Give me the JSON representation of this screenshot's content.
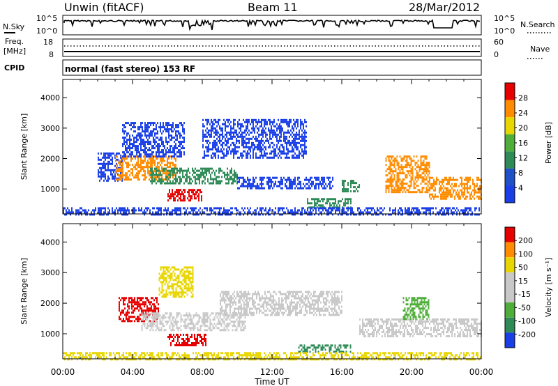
{
  "header": {
    "station": "Unwin (fitACF)",
    "beam": "Beam 11",
    "date": "28/Mar/2012"
  },
  "status_panel": {
    "nsky_label": "N.Sky",
    "nsky_ticks": [
      "10^5",
      "10^0"
    ],
    "nsearch_label": "N.Search",
    "nsearch_ticks": [
      "10^5",
      "10^0"
    ],
    "freq_label": "Freq.",
    "freq_unit": "[MHz]",
    "freq_ticks": [
      "18",
      "8"
    ],
    "nave_label": "Nave",
    "nave_ticks": [
      "60",
      "0"
    ],
    "cpid_label": "CPID",
    "cpid_text": "normal (fast stereo) 153 RF"
  },
  "colors": {
    "blue": "#1a3fe6",
    "green_dark": "#2e8b57",
    "green_light": "#4fae3a",
    "yellow": "#e8d600",
    "orange": "#ff8c00",
    "red": "#e60000",
    "gray": "#c8c8c8"
  },
  "chart_data": [
    {
      "type": "heatmap",
      "name": "power",
      "ylabel": "Slant Range [km]",
      "xlabel": "Time UT",
      "x_ticks": [
        "00:00",
        "04:00",
        "08:00",
        "12:00",
        "16:00",
        "20:00",
        "00:00"
      ],
      "x_range_hours": [
        0,
        24
      ],
      "y_ticks": [
        "1000",
        "2000",
        "3000",
        "4000"
      ],
      "ylim": [
        180,
        4600
      ],
      "colorbar": {
        "label": "Power [dB]",
        "ticks": [
          "28",
          "24",
          "20",
          "16",
          "12",
          "8",
          "4"
        ],
        "range": [
          0,
          30
        ],
        "colors": [
          "#1a3fe6",
          "#2050c8",
          "#2e8b57",
          "#4fae3a",
          "#e8d600",
          "#ff8c00",
          "#e60000"
        ]
      },
      "echo_regions": [
        {
          "t0": 2.0,
          "t1": 3.4,
          "r0": 1300,
          "r1": 2200,
          "level": "blue"
        },
        {
          "t0": 3.0,
          "t1": 6.5,
          "r0": 1300,
          "r1": 2100,
          "level": "orange"
        },
        {
          "t0": 3.4,
          "t1": 7.0,
          "r0": 2100,
          "r1": 3200,
          "level": "blue"
        },
        {
          "t0": 5.0,
          "t1": 10.0,
          "r0": 1200,
          "r1": 1700,
          "level": "green"
        },
        {
          "t0": 6.0,
          "t1": 8.0,
          "r0": 600,
          "r1": 1000,
          "level": "red"
        },
        {
          "t0": 8.0,
          "t1": 14.0,
          "r0": 2000,
          "r1": 3300,
          "level": "blue"
        },
        {
          "t0": 10.0,
          "t1": 15.5,
          "r0": 1000,
          "r1": 1400,
          "level": "blue"
        },
        {
          "t0": 14.0,
          "t1": 16.5,
          "r0": 400,
          "r1": 700,
          "level": "green"
        },
        {
          "t0": 16.0,
          "t1": 17.0,
          "r0": 900,
          "r1": 1300,
          "level": "green"
        },
        {
          "t0": 18.5,
          "t1": 21.0,
          "r0": 900,
          "r1": 2100,
          "level": "orange"
        },
        {
          "t0": 21.0,
          "t1": 24.0,
          "r0": 700,
          "r1": 1400,
          "level": "orange"
        },
        {
          "t0": 0.0,
          "t1": 24.0,
          "r0": 180,
          "r1": 400,
          "level": "blue"
        }
      ]
    },
    {
      "type": "heatmap",
      "name": "velocity",
      "ylabel": "Slant Range [km]",
      "xlabel": "Time UT",
      "x_ticks": [
        "00:00",
        "04:00",
        "08:00",
        "12:00",
        "16:00",
        "20:00",
        "00:00"
      ],
      "x_range_hours": [
        0,
        24
      ],
      "y_ticks": [
        "1000",
        "2000",
        "3000",
        "4000"
      ],
      "ylim": [
        180,
        4600
      ],
      "colorbar": {
        "label": "Velocity [m s⁻¹]",
        "ticks": [
          "200",
          "100",
          "50",
          "15",
          "-15",
          "-50",
          "-100",
          "-200"
        ],
        "colors": [
          "#1a3fe6",
          "#2e8b57",
          "#4fae3a",
          "#c8c8c8",
          "#c8c8c8",
          "#e8d600",
          "#ff8c00",
          "#e60000"
        ]
      },
      "echo_regions": [
        {
          "t0": 3.2,
          "t1": 5.5,
          "r0": 1400,
          "r1": 2200,
          "level": "red"
        },
        {
          "t0": 4.5,
          "t1": 10.5,
          "r0": 1100,
          "r1": 1700,
          "level": "gray"
        },
        {
          "t0": 6.0,
          "t1": 8.2,
          "r0": 600,
          "r1": 1000,
          "level": "red"
        },
        {
          "t0": 5.5,
          "t1": 7.5,
          "r0": 2200,
          "r1": 3200,
          "level": "yellow"
        },
        {
          "t0": 9.0,
          "t1": 16.0,
          "r0": 1600,
          "r1": 2400,
          "level": "gray"
        },
        {
          "t0": 13.5,
          "t1": 16.5,
          "r0": 400,
          "r1": 650,
          "level": "green"
        },
        {
          "t0": 17.0,
          "t1": 24.0,
          "r0": 900,
          "r1": 1500,
          "level": "gray"
        },
        {
          "t0": 19.5,
          "t1": 21.0,
          "r0": 1500,
          "r1": 2200,
          "level": "green_light"
        },
        {
          "t0": 0.0,
          "t1": 24.0,
          "r0": 180,
          "r1": 400,
          "level": "yellow"
        }
      ]
    }
  ]
}
